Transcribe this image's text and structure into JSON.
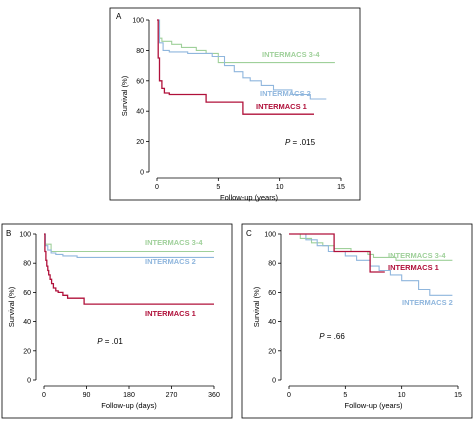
{
  "chart_data": [
    {
      "panel": "A",
      "type": "line",
      "step": true,
      "xlabel": "Follow-up (years)",
      "ylabel": "Survival (%)",
      "xlim": [
        0,
        15
      ],
      "ylim": [
        0,
        100
      ],
      "xticks": [
        0,
        5,
        10,
        15
      ],
      "yticks": [
        0,
        20,
        40,
        60,
        80,
        100
      ],
      "p_value": ".015",
      "series": [
        {
          "name": "INTERMACS 3-4",
          "color": "#9fd09a",
          "x": [
            0,
            0.2,
            0.4,
            1.2,
            2.0,
            3.2,
            4.0,
            5.0,
            14.5
          ],
          "y": [
            100,
            88,
            86,
            84,
            82,
            80,
            78,
            72,
            72
          ]
        },
        {
          "name": "INTERMACS 2",
          "color": "#8fb6dd",
          "x": [
            0,
            0.2,
            0.5,
            1.0,
            2.5,
            4.5,
            5.5,
            6.3,
            7.0,
            7.6,
            8.5,
            9.5,
            11.0,
            12.5,
            13.8
          ],
          "y": [
            100,
            85,
            80,
            79,
            78,
            76,
            70,
            66,
            62,
            60,
            57,
            54,
            51,
            48,
            48
          ]
        },
        {
          "name": "INTERMACS 1",
          "color": "#b0103a",
          "x": [
            0,
            0.1,
            0.2,
            0.4,
            0.6,
            1.0,
            4.0,
            7.0,
            12.8
          ],
          "y": [
            100,
            75,
            60,
            55,
            52,
            51,
            46,
            38,
            38
          ]
        }
      ]
    },
    {
      "panel": "B",
      "type": "line",
      "step": true,
      "xlabel": "Follow-up (days)",
      "ylabel": "Survival (%)",
      "xlim": [
        0,
        360
      ],
      "ylim": [
        0,
        100
      ],
      "xticks": [
        0,
        90,
        180,
        270,
        360
      ],
      "yticks": [
        0,
        20,
        40,
        60,
        80,
        100
      ],
      "p_value": ".01",
      "series": [
        {
          "name": "INTERMACS 3-4",
          "color": "#9fd09a",
          "x": [
            0,
            3,
            15,
            360
          ],
          "y": [
            100,
            93,
            88,
            88
          ]
        },
        {
          "name": "INTERMACS 2",
          "color": "#8fb6dd",
          "x": [
            0,
            3,
            8,
            15,
            25,
            40,
            70,
            360
          ],
          "y": [
            100,
            92,
            89,
            87,
            86,
            85,
            84,
            84
          ]
        },
        {
          "name": "INTERMACS 1",
          "color": "#b0103a",
          "x": [
            0,
            2,
            4,
            6,
            8,
            10,
            13,
            16,
            20,
            25,
            30,
            40,
            50,
            85,
            360
          ],
          "y": [
            100,
            88,
            82,
            78,
            75,
            72,
            69,
            66,
            63,
            61,
            60,
            58,
            56,
            52,
            52
          ]
        }
      ]
    },
    {
      "panel": "C",
      "type": "line",
      "step": true,
      "xlabel": "Follow-up (years)",
      "ylabel": "Survival (%)",
      "xlim": [
        0,
        15
      ],
      "ylim": [
        0,
        100
      ],
      "xticks": [
        0,
        5,
        10,
        15
      ],
      "yticks": [
        0,
        20,
        40,
        60,
        80,
        100
      ],
      "p_value": ".66",
      "series": [
        {
          "name": "INTERMACS 3-4",
          "color": "#9fd09a",
          "x": [
            0,
            1.0,
            2.0,
            3.0,
            4.0,
            5.5,
            7.0,
            7.5,
            9.5,
            14.5
          ],
          "y": [
            100,
            97,
            94,
            92,
            90,
            88,
            86,
            84,
            82,
            82
          ]
        },
        {
          "name": "INTERMACS 2",
          "color": "#8fb6dd",
          "x": [
            0,
            1.5,
            2.5,
            3.5,
            5.0,
            6.0,
            7.2,
            8.0,
            9.0,
            10.0,
            11.5,
            12.5,
            14.5
          ],
          "y": [
            100,
            96,
            92,
            88,
            85,
            82,
            78,
            75,
            72,
            68,
            62,
            58,
            58
          ]
        },
        {
          "name": "INTERMACS 1",
          "color": "#b0103a",
          "x": [
            0,
            1.5,
            4.0,
            7.2,
            8.5
          ],
          "y": [
            100,
            100,
            88,
            74,
            74
          ]
        }
      ]
    }
  ]
}
